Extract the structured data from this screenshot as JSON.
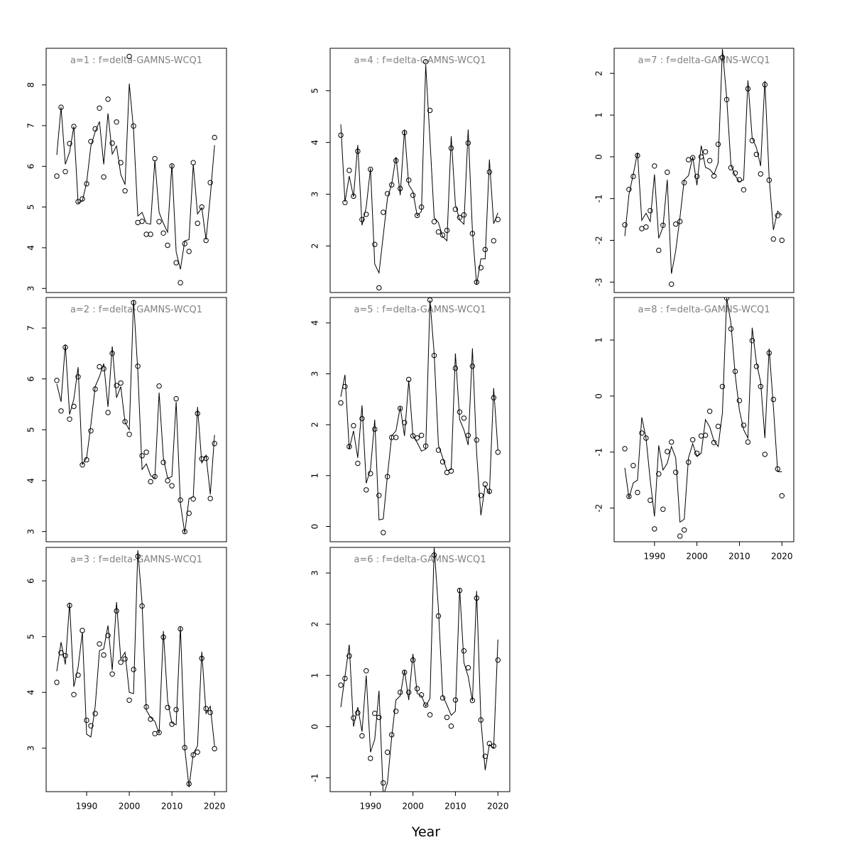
{
  "chart_data": {
    "type": "multi-panel line+scatter",
    "xlabel": "Year",
    "xticks": [
      1990,
      2000,
      2010,
      2020
    ],
    "years": [
      1983,
      1984,
      1985,
      1986,
      1987,
      1988,
      1989,
      1990,
      1991,
      1992,
      1993,
      1994,
      1995,
      1996,
      1997,
      1998,
      1999,
      2000,
      2001,
      2002,
      2003,
      2004,
      2005,
      2006,
      2007,
      2008,
      2009,
      2010,
      2011,
      2012,
      2013,
      2014,
      2015,
      2016,
      2017,
      2018,
      2019,
      2020
    ],
    "panels": [
      {
        "title": "a=1  :  f=delta-GAMNS-WCQ1",
        "ylim": [
          2.9,
          8.9
        ],
        "yticks": [
          3,
          4,
          5,
          6,
          7,
          8
        ],
        "points": [
          5.76,
          7.45,
          5.87,
          6.56,
          6.98,
          5.13,
          5.2,
          5.57,
          6.61,
          6.92,
          7.43,
          5.74,
          7.65,
          6.57,
          7.09,
          6.09,
          5.4,
          8.7,
          6.99,
          4.62,
          4.65,
          4.33,
          4.33,
          6.19,
          4.64,
          4.36,
          4.06,
          6.01,
          3.63,
          3.14,
          4.1,
          3.91,
          6.09,
          4.6,
          5.0,
          4.18,
          5.6,
          6.71
        ],
        "fit": [
          6.28,
          7.45,
          6.05,
          6.35,
          6.98,
          5.1,
          5.15,
          5.6,
          6.5,
          6.85,
          7.1,
          6.05,
          7.3,
          6.3,
          6.5,
          5.8,
          5.55,
          8.03,
          6.9,
          4.78,
          4.87,
          4.6,
          4.58,
          6.15,
          4.87,
          4.6,
          4.38,
          6.05,
          3.9,
          3.47,
          4.17,
          4.2,
          6.05,
          4.83,
          4.98,
          4.2,
          5.27,
          6.52
        ]
      },
      {
        "title": "a=2  :  f=delta-GAMNS-WCQ1",
        "ylim": [
          2.8,
          7.6
        ],
        "yticks": [
          3,
          4,
          5,
          6,
          7
        ],
        "points": [
          5.97,
          5.37,
          6.62,
          5.21,
          5.46,
          6.04,
          4.31,
          4.41,
          4.98,
          5.8,
          6.24,
          6.2,
          5.34,
          6.5,
          5.87,
          5.92,
          5.16,
          4.91,
          7.5,
          6.25,
          4.49,
          4.56,
          3.98,
          4.08,
          5.86,
          4.36,
          4.0,
          3.9,
          5.61,
          3.62,
          3.0,
          3.36,
          3.64,
          5.32,
          4.43,
          4.44,
          3.65,
          4.73
        ],
        "fit": [
          5.9,
          5.55,
          6.68,
          5.3,
          5.6,
          6.23,
          4.32,
          4.45,
          5.1,
          5.85,
          6.05,
          6.3,
          5.45,
          6.64,
          5.63,
          5.85,
          5.15,
          5.0,
          7.55,
          6.15,
          4.22,
          4.33,
          4.1,
          4.05,
          5.73,
          4.45,
          4.05,
          4.08,
          5.55,
          3.55,
          2.97,
          3.65,
          3.68,
          5.45,
          4.35,
          4.5,
          3.73,
          4.9
        ]
      },
      {
        "title": "a=3  :  f=delta-GAMNS-WCQ1",
        "ylim": [
          2.22,
          6.6
        ],
        "yticks": [
          3,
          4,
          5,
          6
        ],
        "points": [
          4.18,
          4.71,
          4.66,
          5.56,
          3.96,
          4.31,
          5.11,
          3.5,
          3.4,
          3.62,
          4.87,
          4.67,
          5.02,
          4.33,
          5.46,
          4.54,
          4.6,
          3.86,
          4.41,
          6.44,
          5.55,
          3.74,
          3.52,
          3.26,
          3.28,
          4.99,
          3.73,
          3.43,
          3.69,
          5.14,
          3.01,
          2.36,
          2.88,
          2.93,
          4.61,
          3.71,
          3.64,
          2.99
        ],
        "fit": [
          4.38,
          4.9,
          4.5,
          5.6,
          4.1,
          4.45,
          5.08,
          3.25,
          3.2,
          3.75,
          4.75,
          4.78,
          5.2,
          4.4,
          5.62,
          4.6,
          4.72,
          4.0,
          3.98,
          6.55,
          5.6,
          3.68,
          3.55,
          3.48,
          3.26,
          5.1,
          3.85,
          3.45,
          3.42,
          5.18,
          3.0,
          2.3,
          2.9,
          3.04,
          4.73,
          3.62,
          3.75,
          3.04
        ]
      },
      {
        "title": "a=4  :  f=delta-GAMNS-WCQ1",
        "ylim": [
          1.1,
          5.82
        ],
        "yticks": [
          2,
          3,
          4,
          5
        ],
        "points": [
          4.14,
          2.84,
          3.46,
          2.96,
          3.83,
          2.51,
          2.61,
          3.48,
          2.03,
          1.19,
          2.65,
          3.01,
          3.18,
          3.65,
          3.11,
          4.19,
          3.27,
          2.98,
          2.59,
          2.75,
          5.56,
          4.62,
          2.47,
          2.27,
          2.21,
          2.3,
          3.89,
          2.71,
          2.55,
          2.6,
          3.99,
          2.24,
          1.3,
          1.58,
          1.93,
          3.43,
          2.1,
          2.51
        ],
        "fit": [
          4.35,
          2.85,
          3.35,
          2.95,
          3.95,
          2.4,
          2.75,
          3.5,
          1.65,
          1.48,
          2.2,
          2.92,
          3.2,
          3.72,
          2.98,
          4.25,
          3.18,
          3.05,
          2.58,
          2.67,
          5.5,
          4.05,
          2.55,
          2.45,
          2.18,
          2.1,
          4.12,
          2.8,
          2.5,
          2.42,
          4.25,
          2.28,
          1.25,
          1.75,
          1.75,
          3.67,
          2.43,
          2.64
        ]
      },
      {
        "title": "a=5  :  f=delta-GAMNS-WCQ1",
        "ylim": [
          -0.3,
          4.5
        ],
        "yticks": [
          0,
          1,
          2,
          3,
          4
        ],
        "points": [
          2.43,
          2.75,
          1.57,
          1.98,
          1.24,
          2.12,
          0.72,
          1.04,
          1.91,
          0.61,
          -0.12,
          0.98,
          1.75,
          1.75,
          2.32,
          2.04,
          2.89,
          1.78,
          1.74,
          1.79,
          1.58,
          4.45,
          3.36,
          1.5,
          1.27,
          1.06,
          1.09,
          3.11,
          2.25,
          2.13,
          1.79,
          3.15,
          1.7,
          0.61,
          0.83,
          0.69,
          2.53,
          1.46
        ],
        "fit": [
          2.55,
          2.98,
          1.52,
          1.88,
          1.35,
          2.38,
          0.85,
          1.12,
          2.1,
          0.13,
          0.15,
          1.0,
          1.78,
          1.88,
          2.35,
          1.78,
          2.87,
          1.78,
          1.65,
          1.48,
          1.52,
          4.45,
          3.4,
          1.6,
          1.35,
          1.1,
          1.12,
          3.4,
          2.1,
          1.9,
          1.6,
          3.5,
          1.45,
          0.22,
          0.8,
          0.65,
          2.72,
          1.5
        ]
      },
      {
        "title": "a=6  :  f=delta-GAMNS-WCQ1",
        "ylim": [
          -1.27,
          3.5
        ],
        "yticks": [
          -1,
          0,
          1,
          2,
          3
        ],
        "points": [
          0.81,
          0.94,
          1.38,
          0.17,
          0.27,
          -0.18,
          1.09,
          -0.62,
          0.26,
          0.18,
          -1.1,
          -0.5,
          -0.16,
          0.3,
          0.67,
          1.06,
          0.67,
          1.3,
          0.74,
          0.62,
          0.42,
          0.23,
          3.35,
          2.16,
          0.56,
          0.18,
          0.01,
          0.52,
          2.66,
          1.48,
          1.15,
          0.51,
          2.51,
          0.13,
          -0.58,
          -0.33,
          -0.38,
          1.3
        ],
        "fit": [
          0.38,
          0.98,
          1.6,
          0.0,
          0.38,
          -0.1,
          1.0,
          -0.5,
          -0.25,
          0.7,
          -1.35,
          -1.1,
          -0.2,
          0.52,
          0.6,
          1.1,
          0.52,
          1.42,
          0.65,
          0.6,
          0.4,
          0.55,
          3.5,
          2.3,
          0.6,
          0.42,
          0.22,
          0.3,
          2.7,
          1.25,
          0.98,
          0.5,
          2.65,
          0.13,
          -0.85,
          -0.35,
          -0.42,
          1.7
        ]
      },
      {
        "title": "a=7  :  f=delta-GAMNS-WCQ1",
        "ylim": [
          -3.25,
          2.6
        ],
        "yticks": [
          -3,
          -2,
          -1,
          0,
          1,
          2
        ],
        "points": [
          -1.63,
          -0.78,
          -0.47,
          0.03,
          -1.72,
          -1.68,
          -1.29,
          -0.22,
          -2.24,
          -1.64,
          -0.37,
          -3.05,
          -1.61,
          -1.55,
          -0.62,
          -0.07,
          -0.02,
          -0.47,
          0.0,
          0.12,
          -0.09,
          -0.46,
          0.3,
          2.38,
          1.37,
          -0.26,
          -0.39,
          -0.55,
          -0.79,
          1.63,
          0.39,
          0.06,
          -0.41,
          1.73,
          -0.56,
          -1.97,
          -1.41,
          -2.0
        ],
        "fit": [
          -1.9,
          -0.9,
          -0.42,
          0.1,
          -1.52,
          -1.35,
          -1.55,
          -0.42,
          -1.95,
          -1.68,
          -0.55,
          -2.8,
          -2.25,
          -1.45,
          -0.55,
          -0.45,
          0.0,
          -0.68,
          0.27,
          -0.25,
          -0.3,
          -0.42,
          -0.15,
          2.58,
          1.42,
          -0.2,
          -0.45,
          -0.6,
          -0.55,
          1.83,
          0.45,
          0.22,
          -0.22,
          1.82,
          -0.5,
          -1.75,
          -1.3,
          -1.4
        ]
      },
      {
        "title": "a=8  :  f=delta-GAMNS-WCQ1",
        "ylim": [
          -2.6,
          1.76
        ],
        "yticks": [
          -2,
          -1,
          0,
          1
        ],
        "points": [
          -0.94,
          -1.79,
          -1.24,
          -1.72,
          -0.66,
          -0.75,
          -1.86,
          -2.37,
          -1.39,
          -2.02,
          -0.99,
          -0.82,
          -1.36,
          -2.5,
          -2.39,
          -1.18,
          -0.78,
          -1.02,
          -0.71,
          -0.7,
          -0.27,
          -0.83,
          -0.54,
          0.17,
          1.75,
          1.2,
          0.44,
          -0.08,
          -0.52,
          -0.82,
          0.99,
          0.53,
          0.17,
          -1.04,
          0.77,
          -0.06,
          -1.3,
          -1.78
        ],
        "fit": [
          -1.28,
          -1.82,
          -1.55,
          -1.5,
          -0.38,
          -0.75,
          -1.5,
          -2.15,
          -0.88,
          -1.32,
          -1.2,
          -0.9,
          -1.1,
          -2.25,
          -2.2,
          -1.1,
          -0.85,
          -1.08,
          -1.02,
          -0.42,
          -0.55,
          -0.8,
          -0.9,
          -0.3,
          1.75,
          1.3,
          0.38,
          -0.25,
          -0.6,
          -0.75,
          1.22,
          0.6,
          0.25,
          -0.75,
          0.85,
          -0.2,
          -1.35,
          -1.35
        ]
      }
    ]
  }
}
